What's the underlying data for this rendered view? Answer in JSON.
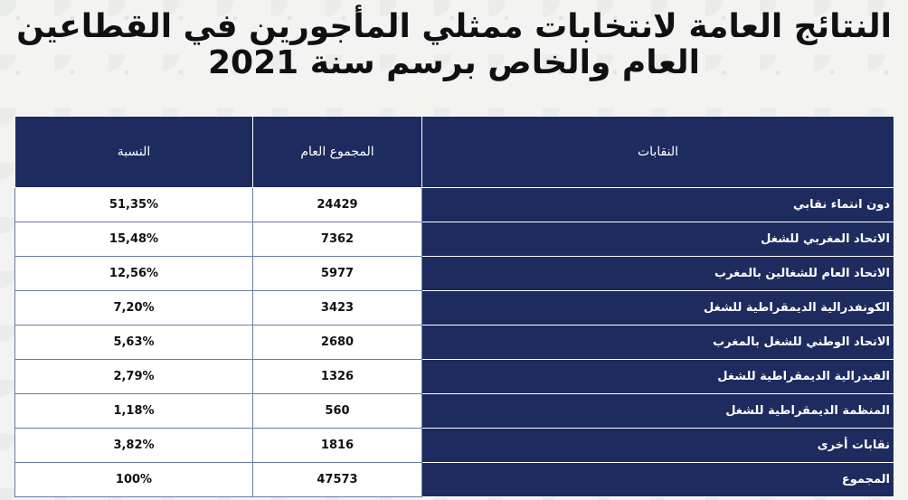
{
  "title": {
    "line1": "النتائج العامة لانتخابات ممثلي المأجورين في القطاعين",
    "line2": "العام والخاص برسم سنة 2021"
  },
  "table": {
    "headers": {
      "percentage": "النسبة",
      "total": "المجموع العام",
      "unions": "النقابات"
    },
    "rows": [
      {
        "union": "دون انتماء نقابي",
        "total": "24429",
        "percentage": "51,35%"
      },
      {
        "union": "الاتحاد المغربي للشغل",
        "total": "7362",
        "percentage": "15,48%"
      },
      {
        "union": "الاتحاد العام للشغالين بالمغرب",
        "total": "5977",
        "percentage": "12,56%"
      },
      {
        "union": "الكونفدرالية الديمقراطية للشغل",
        "total": "3423",
        "percentage": "7,20%"
      },
      {
        "union": "الاتحاد الوطني للشغل بالمغرب",
        "total": "2680",
        "percentage": "5,63%"
      },
      {
        "union": "الفيدرالية الديمقراطية للشغل",
        "total": "1326",
        "percentage": "2,79%"
      },
      {
        "union": "المنظمة الديمقراطية للشغل",
        "total": "560",
        "percentage": "1,18%"
      },
      {
        "union": "نقابات أخرى",
        "total": "1816",
        "percentage": "3,82%"
      },
      {
        "union": "المجموع",
        "total": "47573",
        "percentage": "100%"
      }
    ]
  },
  "colors": {
    "header_bg": "#1d2b5e",
    "header_text": "#ffffff",
    "cell_bg": "#ffffff"
  }
}
